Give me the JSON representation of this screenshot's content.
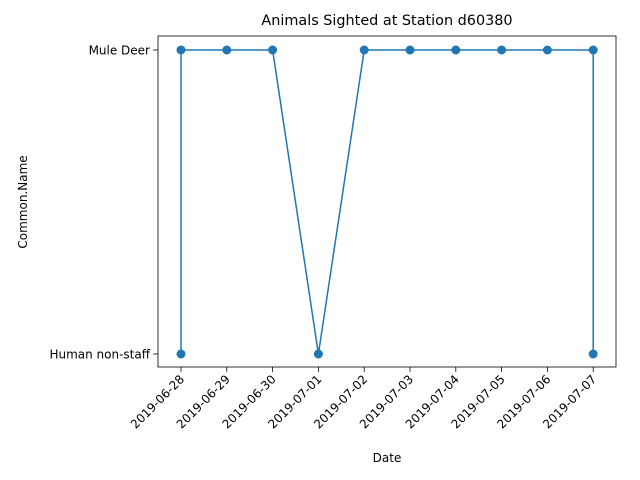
{
  "chart_data": {
    "type": "line",
    "title": "Animals Sighted at Station d60380",
    "xlabel": "Date",
    "ylabel": "Common.Name",
    "x_ticks": [
      "2019-06-28",
      "2019-06-29",
      "2019-06-30",
      "2019-07-01",
      "2019-07-02",
      "2019-07-03",
      "2019-07-04",
      "2019-07-05",
      "2019-07-06",
      "2019-07-07"
    ],
    "y_categories": [
      "Human non-staff",
      "Mule Deer"
    ],
    "series": [
      {
        "color": "#1f77b4",
        "marker": "circle",
        "points": [
          {
            "x": "2019-06-28",
            "y": "Human non-staff"
          },
          {
            "x": "2019-06-28",
            "y": "Mule Deer"
          },
          {
            "x": "2019-06-29",
            "y": "Mule Deer"
          },
          {
            "x": "2019-06-30",
            "y": "Mule Deer"
          },
          {
            "x": "2019-07-01",
            "y": "Human non-staff"
          },
          {
            "x": "2019-07-02",
            "y": "Mule Deer"
          },
          {
            "x": "2019-07-03",
            "y": "Mule Deer"
          },
          {
            "x": "2019-07-04",
            "y": "Mule Deer"
          },
          {
            "x": "2019-07-05",
            "y": "Mule Deer"
          },
          {
            "x": "2019-07-06",
            "y": "Mule Deer"
          },
          {
            "x": "2019-07-07",
            "y": "Mule Deer"
          },
          {
            "x": "2019-07-07",
            "y": "Human non-staff"
          }
        ]
      }
    ],
    "grid": false,
    "legend": "none"
  }
}
